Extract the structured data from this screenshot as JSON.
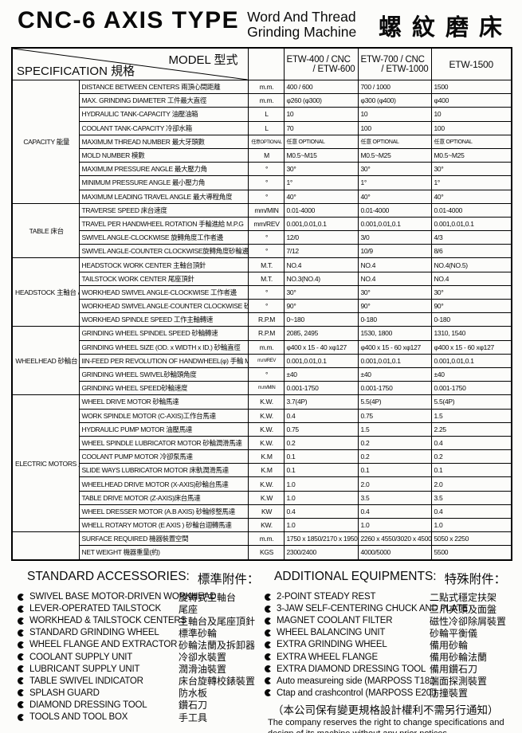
{
  "header": {
    "title": "CNC-6 AXIS TYPE",
    "subtitle_line1": "Word And Thread",
    "subtitle_line2": "Grinding Machine",
    "chinese_title": "螺紋磨床"
  },
  "table": {
    "spec_label": "SPECIFICATION 規格",
    "model_label": "MODEL 型式",
    "models": [
      {
        "top": "ETW-400 / CNC",
        "bottom": "/ ETW-600"
      },
      {
        "top": "ETW-700 / CNC",
        "bottom": "/ ETW-1000"
      },
      {
        "top": "ETW-1500",
        "bottom": ""
      }
    ],
    "sections": [
      {
        "group": "CAPACITY\n能量",
        "rows": [
          {
            "label": "DISTANCE BETWEEN CENTERS 兩頂心間距離",
            "unit": "m.m.",
            "values": [
              "400 / 600",
              "700 / 1000",
              "1500"
            ]
          },
          {
            "label": "MAX. GRINDING DIAMETER 工件最大直徑",
            "unit": "m.m.",
            "values": [
              "φ260 (φ300)",
              "φ300 (φ400)",
              "φ400"
            ]
          },
          {
            "label": "HYDRAULIC TANK-CAPACITY 油壓油箱",
            "unit": "L",
            "values": [
              "10",
              "10",
              "10"
            ]
          },
          {
            "label": "COOLANT TANK-CAPACITY 冷卻水箱",
            "unit": "L",
            "values": [
              "70",
              "100",
              "100"
            ]
          },
          {
            "label": "MAXIMUM THREAD NUMBER 最大牙頭數",
            "unit": "任意OPTIONAL",
            "values": [
              "任意 OPTIONAL",
              "任意 OPTIONAL",
              "任意 OPTIONAL"
            ]
          },
          {
            "label": "MOLD NUMBER 模數",
            "unit": "M",
            "values": [
              "M0.5~M15",
              "M0.5~M25",
              "M0.5~M25"
            ]
          },
          {
            "label": "MAXIMUM PRESSURE ANGLE 最大壓力角",
            "unit": "°",
            "values": [
              "30°",
              "30°",
              "30°"
            ]
          },
          {
            "label": "MINIMUM PRESSURE ANGLE 最小壓力角",
            "unit": "°",
            "values": [
              "1°",
              "1°",
              "1°"
            ]
          },
          {
            "label": "MAXIMUM LEADING TRAVEL ANGLE 最大導程角度",
            "unit": "°",
            "values": [
              "40°",
              "40°",
              "40°"
            ]
          }
        ]
      },
      {
        "group": "TABLE\n床台",
        "rows": [
          {
            "label": "TRAVERSE SPEED 床台速度",
            "unit": "mm/MIN",
            "values": [
              "0.01-4000",
              "0.01-4000",
              "0.01-4000"
            ]
          },
          {
            "label": "TRAVEL PER HANDWHEEL ROTATION 手輪進給 M.P.G",
            "unit": "mm/REV",
            "values": [
              "0.001,0.01,0.1",
              "0.001,0.01,0.1",
              "0.001,0.01,0.1"
            ]
          },
          {
            "label": "SWIVEL ANGLE-CLOCKWISE 旋轉角度工作者邊",
            "unit": "°",
            "values": [
              "12/0",
              "3/0",
              "4/3"
            ]
          },
          {
            "label": "SWIVEL ANGLE-COUNTER CLOCKWISE旋轉角度砂輪邊",
            "unit": "°",
            "values": [
              "7/12",
              "10/9",
              "8/6"
            ]
          }
        ]
      },
      {
        "group": "HEADSTOCK\n主軸台\n&\nTAILSTOCK\n尾座",
        "rows": [
          {
            "label": "HEADSTOCK WORK CENTER 主軸台頂針",
            "unit": "M.T.",
            "values": [
              "NO.4",
              "NO.4",
              "NO.4(NO.5)"
            ]
          },
          {
            "label": "TAILSTOCK WORK CENTER 尾座頂針",
            "unit": "M.T.",
            "values": [
              "NO.3(NO.4)",
              "NO.4",
              "NO.4"
            ]
          },
          {
            "label": "WORKHEAD SWIVEL ANGLE-CLOCKWISE 工作者邊",
            "unit": "°",
            "values": [
              "30°",
              "30°",
              "30°"
            ]
          },
          {
            "label": "WORKHEAD SWIVEL ANGLE-COUNTER CLOCKWISE 砂輪邊",
            "unit": "°",
            "values": [
              "90°",
              "90°",
              "90°"
            ]
          },
          {
            "label": "WORKHEAD SPINDLE SPEED 工作主軸轉速",
            "unit": "R.P.M",
            "values": [
              "0~180",
              "0-180",
              "0-180"
            ]
          }
        ]
      },
      {
        "group": "WHEELHEAD\n砂輪台",
        "rows": [
          {
            "label": "GRINDING WHEEL SPINDEL SPEED 砂輪轉速",
            "unit": "R.P.M",
            "values": [
              "2085, 2495",
              "1530, 1800",
              "1310, 1540"
            ]
          },
          {
            "label": "GRINDING WHEEL SIZE (OD. x WIDTH x ID.) 砂輪直徑",
            "unit": "m.m.",
            "values": [
              "φ400 x 15 - 40 xφ127",
              "φ400 x 15 - 60 xφ127",
              "φ400 x 15 - 60 xφ127"
            ]
          },
          {
            "label": "IIN-FEED PER REVOLUTION OF HANDWHEEL(φ) 手輪 M.P.G(φ)",
            "unit": "m.m/REV",
            "values": [
              "0.001,0.01,0.1",
              "0.001,0.01,0.1",
              "0.001,0.01,0.1"
            ]
          },
          {
            "label": "GRINDING WHEEL SWIVEL砂輪頭角度",
            "unit": "°",
            "values": [
              "±40",
              "±40",
              "±40"
            ]
          },
          {
            "label": "GRINDING WHEEL SPEED砂輪速度",
            "unit": "m.m/MIN",
            "values": [
              "0.001-1750",
              "0.001-1750",
              "0.001-1750"
            ]
          }
        ]
      },
      {
        "group": "ELECTRIC\nMOTORS\n馬達",
        "rows": [
          {
            "label": "WHEEL DRIVE MOTOR 砂輪馬達",
            "unit": "K.W.",
            "values": [
              "3.7(4P)",
              "5.5(4P)",
              "5.5(4P)"
            ]
          },
          {
            "label": "WORK SPINDLE MOTOR (C-AXIS)工作台馬達",
            "unit": "K.W.",
            "values": [
              "0.4",
              "0.75",
              "1.5"
            ]
          },
          {
            "label": "HYDRAULIC PUMP MOTOR 油壓馬達",
            "unit": "K.W.",
            "values": [
              "0.75",
              "1.5",
              "2.25"
            ]
          },
          {
            "label": "WHEEL SPINDLE LUBRICATOR MOTOR 砂輪潤滑馬達",
            "unit": "K.W.",
            "values": [
              "0.2",
              "0.2",
              "0.4"
            ]
          },
          {
            "label": "COOLANT PUMP MOTOR 冷卻泵馬達",
            "unit": "K.M",
            "values": [
              "0.1",
              "0.2",
              "0.2"
            ]
          },
          {
            "label": "SLIDE WAYS LUBRICATOR MOTOR 床軌潤滑馬達",
            "unit": "K.M",
            "values": [
              "0.1",
              "0.1",
              "0.1"
            ]
          },
          {
            "label": "WHEELHEAD DRIVE MOTOR (X-AXIS)砂輪台馬達",
            "unit": "K.W.",
            "values": [
              "1.0",
              "2.0",
              "2.0"
            ]
          },
          {
            "label": "TABLE DRIVE MOTOR (Z-AXIS)床台馬達",
            "unit": "K.W",
            "values": [
              "1.0",
              "3.5",
              "3.5"
            ]
          },
          {
            "label": "WHEEL DRESSER MOTOR (A.B AXIS) 砂輪修整馬達",
            "unit": "KW",
            "values": [
              "0.4",
              "0.4",
              "0.4"
            ]
          },
          {
            "label": "WHELL ROTARY MOTOR (E AXIS ) 砂輪台迴轉馬達",
            "unit": "KW.",
            "values": [
              "1.0",
              "1.0",
              "1.0"
            ]
          }
        ]
      },
      {
        "group": "",
        "rows": [
          {
            "label": "SURFACE REQUIRED 機器裝置空間",
            "unit": "m.m.",
            "values": [
              "1750 x 1850/2170 x 1950",
              "2260 x 4550/3020 x 4500",
              "5050 x 2250"
            ]
          },
          {
            "label": "NET WEIGHT 機器重量(約)",
            "unit": "KGS",
            "values": [
              "2300/2400",
              "4000/5000",
              "5500"
            ]
          }
        ]
      }
    ]
  },
  "standard_accessories": {
    "header_en": "STANDARD ACCESSORIES:",
    "header_zh": "標準附件：",
    "items": [
      {
        "en": "SWIVEL BASE MOTOR-DRIVEN WORKHEAD",
        "zh": "旋轉式主軸台"
      },
      {
        "en": "LEVER-OPERATED TAILSTOCK",
        "zh": "尾座"
      },
      {
        "en": "WORKHEAD & TAILSTOCK CENTERS",
        "zh": "主軸台及尾座頂針"
      },
      {
        "en": "STANDARD GRINDING WHEEL",
        "zh": "標準砂輪"
      },
      {
        "en": "WHEEL FLANGE AND EXTRACTOR",
        "zh": "砂輪法蘭及拆卸器"
      },
      {
        "en": "COOLANT SUPPLY UNIT",
        "zh": "冷卻水裝置"
      },
      {
        "en": "LUBRICANT SUPPLY UNIT",
        "zh": "潤滑油裝置"
      },
      {
        "en": "TABLE SWIVEL INDICATOR",
        "zh": "床台旋轉校錶裝置"
      },
      {
        "en": "SPLASH GUARD",
        "zh": "防水板"
      },
      {
        "en": "DIAMOND DRESSING TOOL",
        "zh": "鑽石刀"
      },
      {
        "en": "TOOLS AND TOOL BOX",
        "zh": "手工具"
      }
    ]
  },
  "additional_equipments": {
    "header_en": "ADDITIONAL EQUIPMENTS:",
    "header_zh": "特殊附件：",
    "items": [
      {
        "en": "2-POINT STEADY REST",
        "zh": "二點式穩定扶架"
      },
      {
        "en": "3-JAW SELF-CENTERING CHUCK AND PLATE",
        "zh": "三爪夾頭及面盤"
      },
      {
        "en": "MAGNET COOLANT FILTER",
        "zh": "磁性冷卻除屑裝置"
      },
      {
        "en": "WHEEL BALANCING UNIT",
        "zh": "砂輪平衡儀"
      },
      {
        "en": "EXTRA GRINDING WHEEL",
        "zh": "備用砂輪"
      },
      {
        "en": "EXTRA WHEEL FLANGE",
        "zh": "備用砂輪法蘭"
      },
      {
        "en": "EXTRA DIAMOND DRESSING TOOL",
        "zh": "備用鑽石刀"
      },
      {
        "en": "Auto measureing side (MARPOSS T18.)",
        "zh": "端面探測裝置"
      },
      {
        "en": "Ctap and crashcontrol (MARPOSS E20.)",
        "zh": "防撞裝置"
      }
    ]
  },
  "notes": {
    "zh": "（本公司保有變更規格設計權利不需另行通知）",
    "en": "The company reserves the right to change specifications and design of its machine without any prior notices."
  }
}
